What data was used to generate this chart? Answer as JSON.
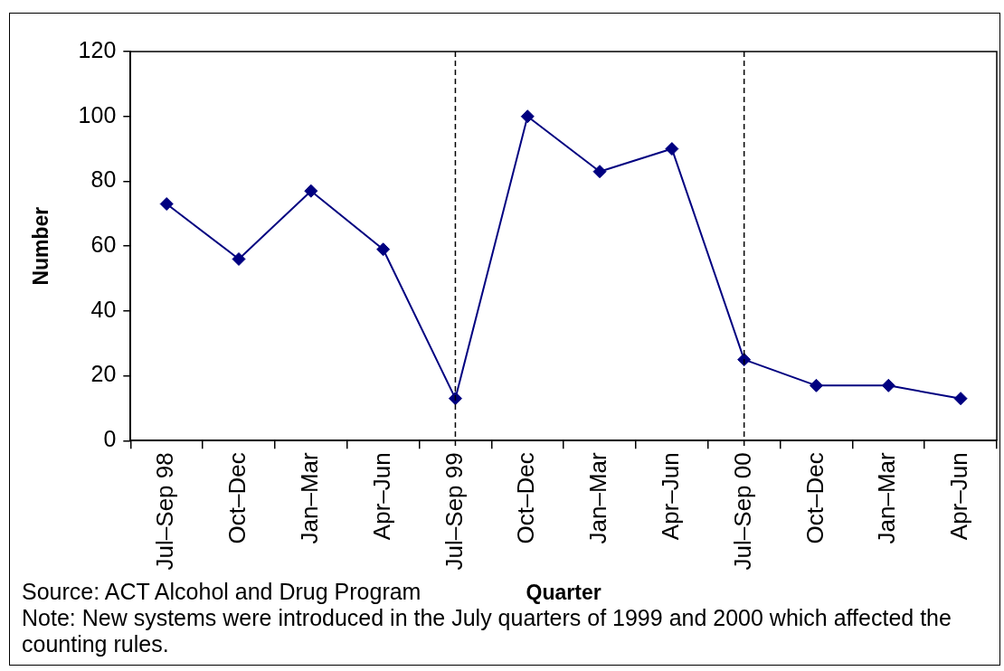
{
  "chart_data": {
    "type": "line",
    "xlabel": "Quarter",
    "ylabel": "Number",
    "categories": [
      "Jul–Sep 98",
      "Oct–Dec",
      "Jan–Mar",
      "Apr–Jun",
      "Jul–Sep 99",
      "Oct–Dec",
      "Jan–Mar",
      "Apr–Jun",
      "Jul–Sep 00",
      "Oct–Dec",
      "Jan–Mar",
      "Apr–Jun"
    ],
    "values": [
      73,
      56,
      77,
      59,
      13,
      100,
      83,
      90,
      25,
      17,
      17,
      13
    ],
    "color": "#000080",
    "ylim": [
      0,
      120
    ],
    "yticks": [
      0,
      20,
      40,
      60,
      80,
      100,
      120
    ],
    "marker": "diamond",
    "ref_lines": [
      {
        "axis": "x",
        "value": "Jul–Sep 99",
        "color": "#000000",
        "line_style": "dashed"
      },
      {
        "axis": "x",
        "value": "Jul–Sep 00",
        "color": "#000000",
        "line_style": "dashed"
      }
    ],
    "annotations": [
      "Source: ACT Alcohol and Drug Program",
      "Note: New systems were introduced in the July quarters of 1999 and 2000 which affected the counting rules."
    ]
  }
}
